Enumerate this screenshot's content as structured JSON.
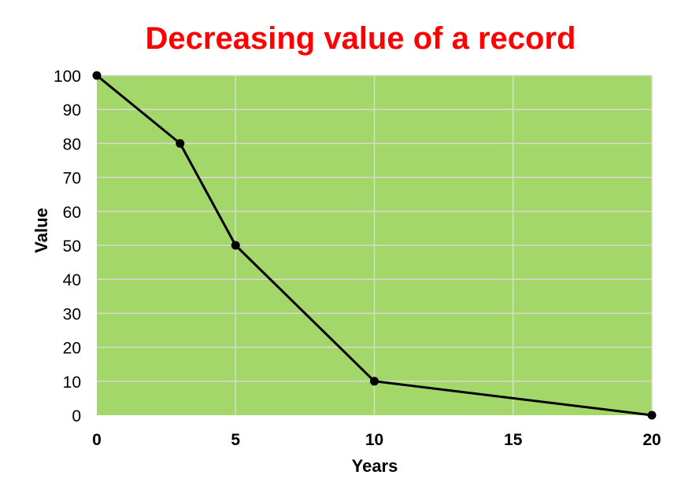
{
  "chart_data": {
    "type": "line",
    "title": "Decreasing value of a record",
    "xlabel": "Years",
    "ylabel": "Value",
    "xlim": [
      0,
      20
    ],
    "ylim": [
      0,
      100
    ],
    "x_ticks": [
      0,
      5,
      10,
      15,
      20
    ],
    "y_ticks": [
      0,
      10,
      20,
      30,
      40,
      50,
      60,
      70,
      80,
      90,
      100
    ],
    "grid": true,
    "legend": "none",
    "series": [
      {
        "x": [
          0,
          3,
          5,
          10,
          20
        ],
        "y": [
          100,
          80,
          50,
          10,
          0
        ]
      }
    ],
    "colors": {
      "title": "#ff0000",
      "plot_background": "#a3d76a",
      "grid": "#d9d9d9",
      "line": "#000000",
      "marker": "#000000"
    }
  }
}
